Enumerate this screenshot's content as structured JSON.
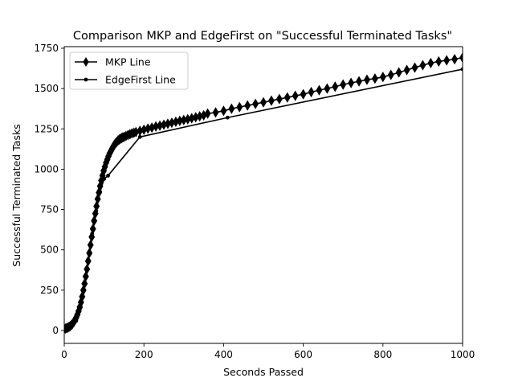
{
  "chart_data": {
    "type": "line",
    "title": "Comparison MKP and EdgeFirst on \"Successful Terminated Tasks\"",
    "xlabel": "Seconds Passed",
    "ylabel": "Successful Terminated Tasks",
    "xlim": [
      0,
      1000
    ],
    "ylim": [
      -80,
      1760
    ],
    "xticks": [
      0,
      200,
      400,
      600,
      800,
      1000
    ],
    "yticks": [
      0,
      250,
      500,
      750,
      1000,
      1250,
      1500,
      1750
    ],
    "grid": false,
    "legend_position": "top-left",
    "series": [
      {
        "name": "MKP Line",
        "color": "#000000",
        "marker": "thin_diamond",
        "x": [
          0,
          3,
          6,
          9,
          12,
          15,
          18,
          21,
          24,
          27,
          30,
          33,
          36,
          39,
          42,
          45,
          48,
          51,
          54,
          57,
          60,
          63,
          66,
          69,
          72,
          75,
          78,
          81,
          84,
          87,
          90,
          93,
          96,
          99,
          102,
          105,
          108,
          111,
          114,
          117,
          120,
          123,
          126,
          129,
          132,
          135,
          138,
          141,
          144,
          147,
          150,
          155,
          160,
          165,
          170,
          175,
          180,
          190,
          200,
          210,
          220,
          230,
          240,
          250,
          260,
          270,
          280,
          290,
          300,
          310,
          320,
          330,
          340,
          350,
          360,
          380,
          400,
          420,
          440,
          460,
          480,
          500,
          520,
          540,
          560,
          580,
          600,
          620,
          640,
          660,
          680,
          700,
          720,
          740,
          760,
          780,
          800,
          820,
          840,
          860,
          880,
          900,
          920,
          940,
          960,
          980,
          1000
        ],
        "y": [
          10,
          12,
          15,
          18,
          22,
          27,
          34,
          42,
          52,
          65,
          80,
          98,
          120,
          145,
          175,
          210,
          250,
          290,
          335,
          380,
          430,
          480,
          530,
          580,
          630,
          680,
          725,
          770,
          815,
          855,
          895,
          930,
          960,
          990,
          1015,
          1040,
          1060,
          1080,
          1098,
          1112,
          1126,
          1140,
          1152,
          1162,
          1170,
          1178,
          1184,
          1189,
          1193,
          1197,
          1200,
          1206,
          1212,
          1217,
          1222,
          1226,
          1230,
          1238,
          1245,
          1252,
          1258,
          1265,
          1270,
          1276,
          1282,
          1288,
          1294,
          1300,
          1305,
          1310,
          1316,
          1322,
          1328,
          1334,
          1345,
          1352,
          1362,
          1375,
          1385,
          1395,
          1405,
          1415,
          1425,
          1435,
          1445,
          1455,
          1465,
          1478,
          1490,
          1500,
          1512,
          1525,
          1535,
          1545,
          1555,
          1562,
          1572,
          1585,
          1600,
          1615,
          1630,
          1645,
          1658,
          1668,
          1675,
          1682,
          1692
        ]
      },
      {
        "name": "EdgeFirst Line",
        "color": "#000000",
        "marker": "point",
        "x": [
          0,
          10,
          20,
          30,
          40,
          50,
          60,
          70,
          80,
          90,
          100,
          110,
          190,
          410,
          1000
        ],
        "y": [
          0,
          10,
          30,
          60,
          140,
          290,
          440,
          600,
          740,
          860,
          940,
          960,
          1200,
          1320,
          1620
        ]
      }
    ]
  }
}
